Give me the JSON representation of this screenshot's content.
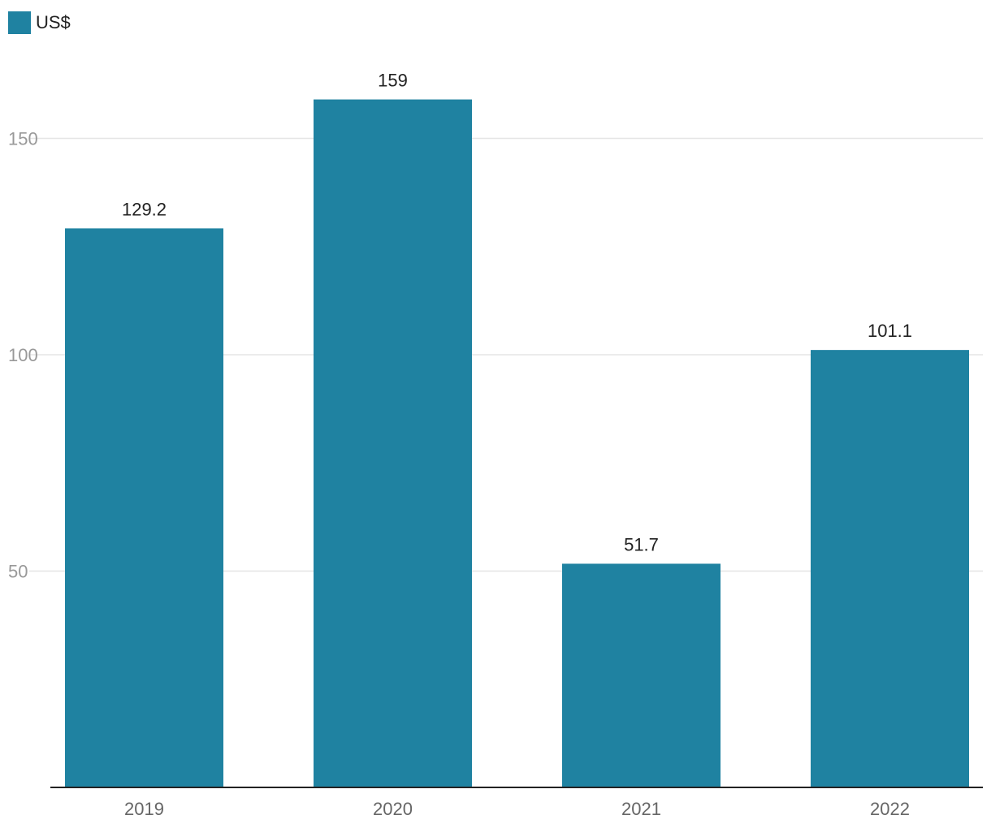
{
  "legend": {
    "label": "US$",
    "color": "#1f82a1"
  },
  "chart_data": {
    "type": "bar",
    "categories": [
      "2019",
      "2020",
      "2021",
      "2022"
    ],
    "series": [
      {
        "name": "US$",
        "values": [
          129.2,
          159,
          51.7,
          101.1
        ],
        "value_labels": [
          "129.2",
          "159",
          "51.7",
          "101.1"
        ]
      }
    ],
    "title": "",
    "xlabel": "",
    "ylabel": "",
    "ylim": [
      0,
      159
    ],
    "yticks": [
      50,
      100,
      150
    ],
    "grid": true,
    "legend_position": "top-left",
    "bar_color": "#1f82a1",
    "grid_color": "#e5e5e5",
    "axis_color": "#222222"
  }
}
